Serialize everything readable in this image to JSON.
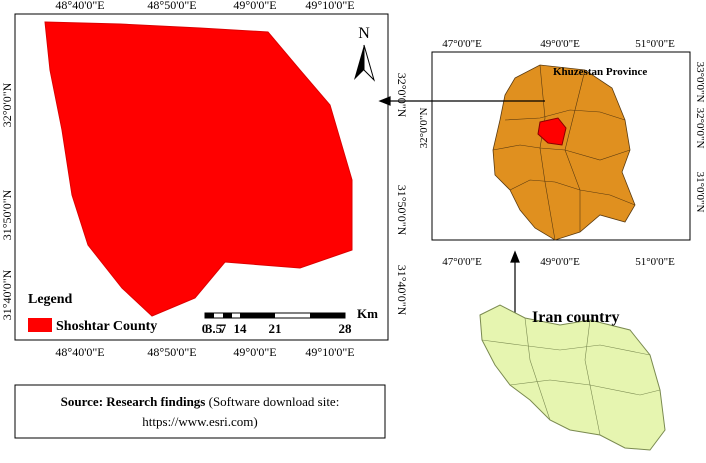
{
  "main_map": {
    "top_ticks": [
      "48°40'0\"E",
      "48°50'0\"E",
      "49°0'0\"E",
      "49°10'0\"E"
    ],
    "bottom_ticks": [
      "48°40'0\"E",
      "48°50'0\"E",
      "49°0'0\"E",
      "49°10'0\"E"
    ],
    "left_ticks": [
      "32°0'0\"N",
      "31°50'0\"N",
      "31°40'0\"N"
    ],
    "right_ticks": [
      "32°0'0\"N",
      "31°50'0\"N",
      "31°40'0\"N"
    ],
    "north": "N",
    "legend": {
      "title": "Legend",
      "item": "Shoshtar County"
    },
    "scale": {
      "unit": "Km",
      "labels": [
        "0",
        "3.5",
        "7",
        "14",
        "21",
        "28"
      ]
    }
  },
  "inset_map": {
    "top_ticks": [
      "47°0'0\"E",
      "49°0'0\"E",
      "51°0'0\"E"
    ],
    "bottom_ticks": [
      "47°0'0\"E",
      "49°0'0\"E",
      "51°0'0\"E"
    ],
    "left_ticks": [
      "32°0'0\"N"
    ],
    "right_ticks": [
      "33°0'0\"N",
      "32°0'0\"N",
      "31°0'0\"N"
    ],
    "label": "Khuzestan Province"
  },
  "iran_map": {
    "label": "Iran country"
  },
  "source": {
    "bold": "Source: Research findings",
    "text": "(Software download site:",
    "url": "https://www.esri.com)"
  }
}
